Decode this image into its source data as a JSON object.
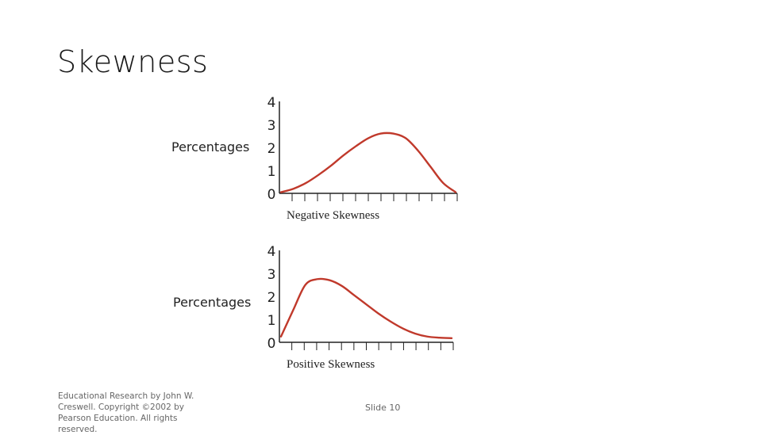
{
  "slide": {
    "title": "Skewness",
    "footer_text": "Educational Research by John W. Creswell. Copyright ©2002 by Pearson Education. All rights reserved.",
    "slide_number": "Slide 10"
  },
  "colors": {
    "curve": "#c0392b",
    "axis": "#222222"
  },
  "chart_data": [
    {
      "type": "line",
      "title": "",
      "xlabel": "Negative Skewness",
      "ylabel": "Percentages",
      "yticks": [
        "0",
        "1",
        "2",
        "3",
        "4"
      ],
      "ylim": [
        0,
        4
      ],
      "x_tick_count": 14,
      "x": [
        0,
        1,
        2,
        3,
        4,
        5,
        6,
        7,
        8,
        9,
        10,
        11,
        12,
        13,
        14
      ],
      "values": [
        0.05,
        0.2,
        0.45,
        0.8,
        1.2,
        1.65,
        2.05,
        2.4,
        2.6,
        2.6,
        2.4,
        1.85,
        1.15,
        0.45,
        0.05
      ]
    },
    {
      "type": "line",
      "title": "",
      "xlabel": "Positive Skewness",
      "ylabel": "Percentages",
      "yticks": [
        "0",
        "1",
        "2",
        "3",
        "4"
      ],
      "ylim": [
        0,
        4
      ],
      "x_tick_count": 14,
      "x": [
        0,
        1,
        2,
        3,
        4,
        5,
        6,
        7,
        8,
        9,
        10,
        11,
        12,
        13,
        14
      ],
      "values": [
        0.25,
        1.4,
        2.5,
        2.75,
        2.7,
        2.45,
        2.05,
        1.65,
        1.25,
        0.9,
        0.6,
        0.38,
        0.25,
        0.2,
        0.18
      ]
    }
  ]
}
